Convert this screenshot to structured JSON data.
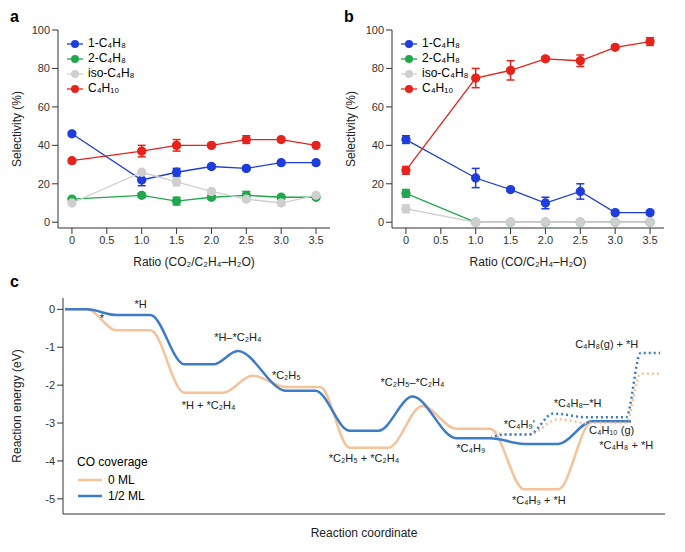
{
  "chart_data": [
    {
      "type": "line",
      "title": "a",
      "x_label": "Ratio (CO₂/C₂H₄–H₂O)",
      "y_label": "Selectivity (%)",
      "x": [
        0,
        1,
        1.5,
        2,
        2.5,
        3,
        3.5
      ],
      "xlim": [
        -0.2,
        3.7
      ],
      "xticks": [
        0,
        0.5,
        {
          "value": 1,
          "label": "1.0"
        },
        1.5,
        {
          "value": 2,
          "label": "2.0"
        },
        2.5,
        {
          "value": 3,
          "label": "3.0"
        },
        3.5
      ],
      "ylim": [
        -3,
        100
      ],
      "yticks": [
        0,
        20,
        40,
        60,
        80,
        100
      ],
      "legend": "top-left",
      "marker": "circle",
      "series": [
        {
          "name": "1-C₄H₈",
          "color": "#1f3ddc",
          "values": [
            46,
            22,
            26,
            29,
            28,
            31,
            31
          ],
          "errors": [
            1,
            3,
            2,
            1,
            1,
            1,
            1
          ]
        },
        {
          "name": "2-C₄H₈",
          "color": "#20a84c",
          "values": [
            12,
            14,
            11,
            13,
            14,
            13,
            13
          ],
          "errors": [
            1,
            1,
            2,
            1,
            2,
            1,
            1
          ]
        },
        {
          "name": "iso-C₄H₈",
          "color": "#cfcfcf",
          "values": [
            10,
            26,
            21,
            16,
            12,
            10,
            14
          ],
          "errors": [
            1,
            1,
            2,
            1,
            1,
            1,
            1
          ]
        },
        {
          "name": "C₄H₁₀",
          "color": "#e8231b",
          "values": [
            32,
            37,
            40,
            40,
            43,
            43,
            40
          ],
          "errors": [
            1,
            3,
            3,
            1,
            2,
            1,
            1
          ]
        }
      ]
    },
    {
      "type": "line",
      "title": "b",
      "x_label": "Ratio (CO/C₂H₄–H₂O)",
      "y_label": "Selectivity (%)",
      "x": [
        0,
        1,
        1.5,
        2,
        2.5,
        3,
        3.5
      ],
      "xlim": [
        -0.2,
        3.7
      ],
      "xticks": [
        0,
        0.5,
        {
          "value": 1,
          "label": "1.0"
        },
        1.5,
        {
          "value": 2,
          "label": "2.0"
        },
        2.5,
        {
          "value": 3,
          "label": "3.0"
        },
        3.5
      ],
      "ylim": [
        -3,
        100
      ],
      "yticks": [
        0,
        20,
        40,
        60,
        80,
        100
      ],
      "legend": "top-left",
      "marker": "circle",
      "series": [
        {
          "name": "1-C₄H₈",
          "color": "#1f3ddc",
          "values": [
            43,
            23,
            17,
            10,
            16,
            5,
            5
          ],
          "errors": [
            2,
            5,
            1,
            3,
            4,
            1,
            1
          ]
        },
        {
          "name": "2-C₄H₈",
          "color": "#20a84c",
          "values": [
            15,
            0,
            0,
            0,
            0,
            0,
            0
          ],
          "errors": [
            2,
            0,
            0,
            0,
            0,
            0,
            0
          ]
        },
        {
          "name": "iso-C₄H₈",
          "color": "#cfcfcf",
          "values": [
            7,
            0,
            0,
            0,
            0,
            0,
            0
          ],
          "errors": [
            2,
            0,
            0,
            0,
            0,
            0,
            0
          ]
        },
        {
          "name": "C₄H₁₀",
          "color": "#e8231b",
          "values": [
            27,
            75,
            79,
            85,
            84,
            91,
            94
          ],
          "errors": [
            2,
            5,
            5,
            1,
            3,
            1,
            2
          ]
        }
      ]
    },
    {
      "type": "line",
      "title": "c",
      "x_label": "Reaction coordinate",
      "y_label": "Reaction energy (eV)",
      "xlim": [
        0,
        62
      ],
      "ylim": [
        -5.4,
        0.3
      ],
      "yticks": [
        -5,
        -4,
        -3,
        -2,
        -1,
        0
      ],
      "tick_labels": "y",
      "legend": "bottom-left",
      "legend_title": "CO coverage",
      "series": [
        {
          "name": "0 ML",
          "color": "#f5c39a",
          "line_style": "solid",
          "x": [
            0.2,
            2.5,
            5.5,
            9,
            12.5,
            16.5,
            19.5,
            23,
            26.5,
            29.5,
            33.5,
            37,
            40.5,
            44,
            47.5,
            51,
            54.5,
            58.5
          ],
          "values": [
            0,
            0,
            -0.55,
            -0.55,
            -2.2,
            -2.2,
            -1.75,
            -2.05,
            -2.05,
            -3.65,
            -3.65,
            -2.55,
            -3.15,
            -3.15,
            -4.75,
            -4.75,
            -2.95,
            -2.95
          ]
        },
        {
          "name": "1/2 ML",
          "color": "#3d7cc9",
          "line_style": "solid",
          "x": [
            0.2,
            2.5,
            5.5,
            9,
            12.5,
            15.5,
            18,
            23,
            26,
            29.5,
            32.5,
            36,
            40.5,
            44,
            47.5,
            51,
            54.5,
            58.5
          ],
          "values": [
            0,
            0,
            -0.15,
            -0.15,
            -1.45,
            -1.45,
            -1.1,
            -2.15,
            -2.15,
            -3.2,
            -3.2,
            -2.3,
            -3.4,
            -3.4,
            -3.55,
            -3.55,
            -2.95,
            -2.95
          ]
        },
        {
          "name": "0 ML",
          "color": "#f5c39a",
          "line_style": "dotted",
          "x": [
            44,
            45.5,
            48,
            51,
            54,
            58,
            59.5,
            61.5
          ],
          "values": [
            -3.15,
            -3.3,
            -3.3,
            -2.9,
            -3.0,
            -3.0,
            -1.7,
            -1.7
          ]
        },
        {
          "name": "1/2 ML",
          "color": "#3d7cc9",
          "line_style": "dotted",
          "x": [
            44,
            45.5,
            48,
            50.5,
            54,
            58,
            59.5,
            61.5
          ],
          "values": [
            -3.4,
            -3.3,
            -3.3,
            -2.75,
            -2.85,
            -2.85,
            -1.15,
            -1.15
          ]
        }
      ],
      "annotations": [
        {
          "text": "*",
          "x": 4,
          "y": -0.25
        },
        {
          "text": "*H",
          "x": 8,
          "y": 0.12
        },
        {
          "text": "*H + *C₂H₄",
          "x": 15,
          "y": -2.55
        },
        {
          "text": "*H–*C₂H₄",
          "x": 18,
          "y": -0.75
        },
        {
          "text": "*C₂H₅",
          "x": 23,
          "y": -1.75
        },
        {
          "text": "*C₂H₅–*C₂H₄",
          "x": 36,
          "y": -1.95
        },
        {
          "text": "*C₂H₅ + *C₂H₄",
          "x": 31,
          "y": -3.95
        },
        {
          "text": "*C₄H₉",
          "x": 42,
          "y": -3.7
        },
        {
          "text": "*C₄H₉'",
          "x": 47,
          "y": -3.05
        },
        {
          "text": "*C₄H₈–*H",
          "x": 53,
          "y": -2.5
        },
        {
          "text": "C₄H₁₀ (g)",
          "x": 56.5,
          "y": -3.2
        },
        {
          "text": "*C₄H₈ + *H",
          "x": 58,
          "y": -3.6
        },
        {
          "text": "*C₄H₉ + *H",
          "x": 49,
          "y": -5.05
        },
        {
          "text": "C₄H₈(g) + *H",
          "x": 56,
          "y": -0.95
        }
      ]
    }
  ]
}
